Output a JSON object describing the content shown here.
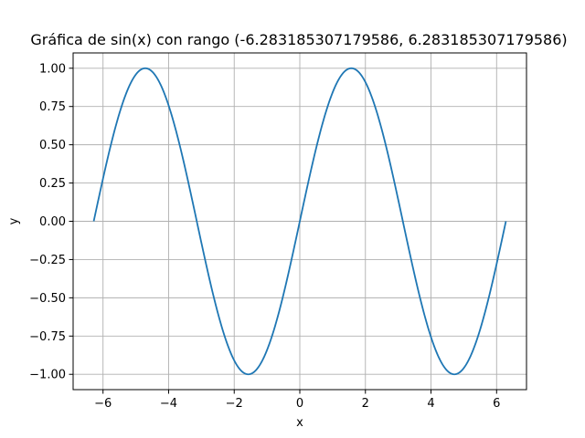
{
  "chart_data": {
    "type": "line",
    "title": "Gráfica de sin(x) con rango (-6.283185307179586, 6.283185307179586)",
    "xlabel": "x",
    "ylabel": "y",
    "function": "sin(x)",
    "xrange": [
      -6.283185307179586,
      6.283185307179586
    ],
    "xlim": [
      -6.911503837897545,
      6.911503837897545
    ],
    "ylim": [
      -1.1,
      1.1
    ],
    "grid": true,
    "x_ticks": [
      -6,
      -4,
      -2,
      0,
      2,
      4,
      6
    ],
    "x_tick_labels": [
      "−6",
      "−4",
      "−2",
      "0",
      "2",
      "4",
      "6"
    ],
    "y_ticks": [
      -1.0,
      -0.75,
      -0.5,
      -0.25,
      0.0,
      0.25,
      0.5,
      0.75,
      1.0
    ],
    "y_tick_labels": [
      "−1.00",
      "−0.75",
      "−0.50",
      "−0.25",
      "0.00",
      "0.25",
      "0.50",
      "0.75",
      "1.00"
    ],
    "series": [
      {
        "color": "#1f77b4",
        "x": [
          -6.2832,
          -5.8905,
          -5.4978,
          -5.1051,
          -4.7124,
          -4.3197,
          -3.927,
          -3.5343,
          -3.1416,
          -2.7489,
          -2.3562,
          -1.9635,
          -1.5708,
          -1.1781,
          -0.7854,
          -0.3927,
          0.0,
          0.3927,
          0.7854,
          1.1781,
          1.5708,
          1.9635,
          2.3562,
          2.7489,
          3.1416,
          3.5343,
          3.927,
          4.3197,
          4.7124,
          5.1051,
          5.4978,
          5.8905,
          6.2832
        ],
        "y": [
          0.0,
          0.3827,
          0.7071,
          0.9239,
          1.0,
          0.9239,
          0.7071,
          0.3827,
          0.0,
          -0.3827,
          -0.7071,
          -0.9239,
          -1.0,
          -0.9239,
          -0.7071,
          -0.3827,
          0.0,
          0.3827,
          0.7071,
          0.9239,
          1.0,
          0.9239,
          0.7071,
          0.3827,
          0.0,
          -0.3827,
          -0.7071,
          -0.9239,
          -1.0,
          -0.9239,
          -0.7071,
          -0.3827,
          0.0
        ]
      }
    ]
  },
  "colors": {
    "grid": "#b0b0b0",
    "axes": "#000000",
    "background": "#ffffff"
  }
}
